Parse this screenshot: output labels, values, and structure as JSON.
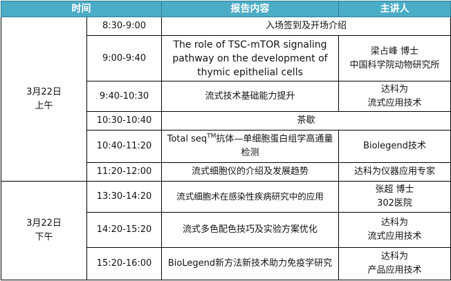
{
  "header": {
    "time": "时间",
    "content": "报告内容",
    "speaker": "主讲人"
  },
  "colors": {
    "header_bg": "#4BACC6",
    "header_text": "#FFFFFF"
  },
  "sessions": [
    {
      "date": "3月22日",
      "period": "上午"
    },
    {
      "date": "3月22日",
      "period": "下午"
    }
  ],
  "rows": [
    {
      "time": "8:30-9:00",
      "content": "入场签到及开场介绍"
    },
    {
      "time": "9:00-9:40",
      "content": "The role of TSC-mTOR signaling pathway on the development of thymic epithelial cells",
      "speaker": "梁占峰 博士",
      "speaker2": "中国科学院动物研究所"
    },
    {
      "time": "9:40-10:30",
      "content": "流式技术基础能力提升",
      "speaker": "达科为",
      "speaker2": "流式应用技术"
    },
    {
      "time": "10:30-10:40",
      "content": "茶歇"
    },
    {
      "time": "10:40-11:20",
      "content": "Total seq",
      "content_sup": "TM",
      "content_rest": "抗体—单细胞蛋白组学高通量检测",
      "speaker": "Biolegend技术"
    },
    {
      "time": "11:20-12:00",
      "content": "流式细胞仪的介绍及发展趋势",
      "speaker": "达科为仪器应用专家"
    },
    {
      "time": "13:30-14:20",
      "content": "流式细胞术在感染性疾病研究中的应用",
      "speaker": "张超 博士",
      "speaker2": "302医院"
    },
    {
      "time": "14:20-15:20",
      "content": "流式多色配色技巧及实验方案优化",
      "speaker": "达科为",
      "speaker2": "流式应用技术"
    },
    {
      "time": "15:20-16:00",
      "content": "BioLegend新方法新技术助力免疫学研究",
      "speaker": "达科为",
      "speaker2": "产品应用技术"
    }
  ]
}
